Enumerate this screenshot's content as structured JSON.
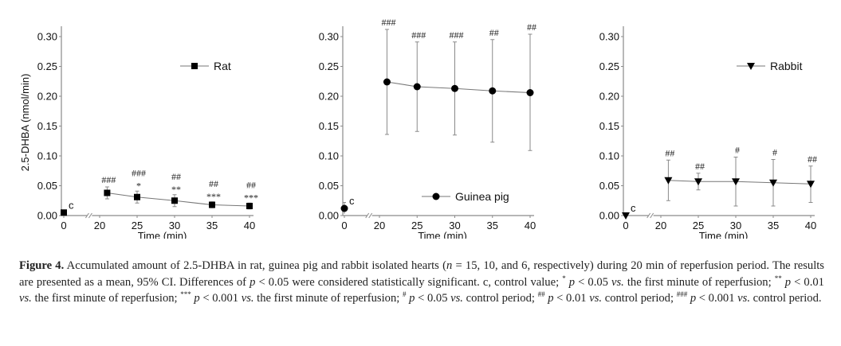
{
  "chart_data": [
    {
      "type": "line",
      "panel": "rat",
      "title": "",
      "xlabel": "Time (min)",
      "ylabel": "2.5-DHBA (nmol/min)",
      "ylim": [
        0,
        0.32
      ],
      "yticks": [
        "0.00",
        "0.05",
        "0.10",
        "0.15",
        "0.20",
        "0.25",
        "0.30"
      ],
      "xticks": [
        "0",
        "20",
        "25",
        "30",
        "35",
        "40"
      ],
      "x_axis_break": "between 0 and 20",
      "legend": {
        "label": "Rat",
        "marker": "square",
        "placement": "top-right"
      },
      "control": {
        "x": 0,
        "y": 0.005,
        "ci_low": 0.001,
        "ci_high": 0.009,
        "label": "c"
      },
      "series": [
        {
          "name": "Rat",
          "marker": "square",
          "x": [
            21,
            25,
            30,
            35,
            40
          ],
          "y": [
            0.038,
            0.031,
            0.025,
            0.018,
            0.016
          ],
          "ci_low": [
            0.028,
            0.021,
            0.015,
            0.013,
            0.011
          ],
          "ci_high": [
            0.048,
            0.041,
            0.035,
            0.023,
            0.021
          ],
          "annotations_hash": [
            "###",
            "###",
            "##",
            "##",
            "##"
          ],
          "annotations_star": [
            "",
            "*",
            "**",
            "***",
            "***"
          ]
        }
      ]
    },
    {
      "type": "line",
      "panel": "guinea-pig",
      "title": "",
      "xlabel": "Time (min)",
      "ylabel": "",
      "ylim": [
        0,
        0.32
      ],
      "yticks": [
        "0.00",
        "0.05",
        "0.10",
        "0.15",
        "0.20",
        "0.25",
        "0.30"
      ],
      "xticks": [
        "0",
        "20",
        "25",
        "30",
        "35",
        "40"
      ],
      "x_axis_break": "between 0 and 20",
      "legend": {
        "label": "Guinea pig",
        "marker": "circle",
        "placement": "bottom-right"
      },
      "control": {
        "x": 0,
        "y": 0.012,
        "ci_low": 0.003,
        "ci_high": 0.022,
        "label": "c"
      },
      "series": [
        {
          "name": "Guinea pig",
          "marker": "circle",
          "x": [
            21,
            25,
            30,
            35,
            40
          ],
          "y": [
            0.224,
            0.216,
            0.213,
            0.209,
            0.206
          ],
          "ci_low": [
            0.136,
            0.141,
            0.135,
            0.123,
            0.109
          ],
          "ci_high": [
            0.312,
            0.291,
            0.291,
            0.295,
            0.304
          ],
          "annotations_hash": [
            "###",
            "###",
            "###",
            "##",
            "##"
          ],
          "annotations_star": [
            "",
            "",
            "",
            "",
            ""
          ]
        }
      ]
    },
    {
      "type": "line",
      "panel": "rabbit",
      "title": "",
      "xlabel": "Time (min)",
      "ylabel": "",
      "ylim": [
        0,
        0.32
      ],
      "yticks": [
        "0.00",
        "0.05",
        "0.10",
        "0.15",
        "0.20",
        "0.25",
        "0.30"
      ],
      "xticks": [
        "0",
        "20",
        "25",
        "30",
        "35",
        "40"
      ],
      "x_axis_break": "between 0 and 20",
      "legend": {
        "label": "Rabbit",
        "marker": "triangle-down",
        "placement": "top-right"
      },
      "control": {
        "x": 0,
        "y": 0.0,
        "ci_low": 0.0,
        "ci_high": 0.0,
        "label": "c"
      },
      "series": [
        {
          "name": "Rabbit",
          "marker": "triangle-down",
          "x": [
            21,
            25,
            30,
            35,
            40
          ],
          "y": [
            0.059,
            0.057,
            0.057,
            0.055,
            0.053
          ],
          "ci_low": [
            0.025,
            0.043,
            0.016,
            0.016,
            0.022
          ],
          "ci_high": [
            0.093,
            0.071,
            0.098,
            0.094,
            0.083
          ],
          "annotations_hash": [
            "##",
            "##",
            "#",
            "#",
            "##"
          ],
          "annotations_star": [
            "",
            "",
            "",
            "",
            ""
          ]
        }
      ]
    }
  ],
  "caption": {
    "label": "Figure 4.",
    "text_1": " Accumulated amount of 2.5-DHBA in rat, guinea pig and rabbit isolated hearts (",
    "n_symbol": "n",
    "text_2": " = 15, 10, and 6, respectively) during 20 min of reperfusion period. The results are presented as a mean, 95% CI. Differences of ",
    "p1": "p",
    "text_3": " < 0.05 were considered statistically significant. c, control value; ",
    "sup1": "*",
    "p2": "p",
    "text_4": " < 0.05 ",
    "vs1": "vs.",
    "text_5": " the first minute of reperfusion; ",
    "sup2": "**",
    "p3": "p",
    "text_6": " < 0.01 ",
    "vs2": "vs.",
    "text_7": " the first minute of reperfusion; ",
    "sup3": "***",
    "p4": "p",
    "text_8": " < 0.001 ",
    "vs3": "vs.",
    "text_9": " the first minute of reperfusion; ",
    "sup4": "#",
    "p5": "p",
    "text_10": " < 0.05 ",
    "vs4": "vs.",
    "text_11": " control period; ",
    "sup5": "##",
    "p6": "p",
    "text_12": " < 0.01 ",
    "vs5": "vs.",
    "text_13": " control period; ",
    "sup6": "###",
    "p7": "p",
    "text_14": " < 0.001 ",
    "vs6": "vs.",
    "text_15": " control period."
  }
}
